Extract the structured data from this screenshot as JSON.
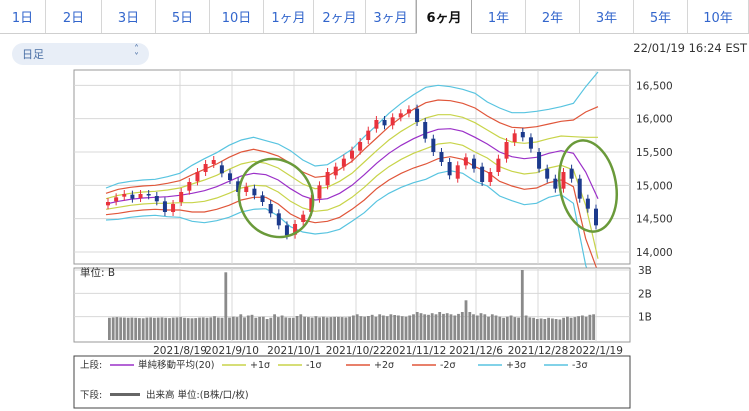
{
  "tabs": [
    {
      "label": "1日",
      "active": false
    },
    {
      "label": "2日",
      "active": false
    },
    {
      "label": "3日",
      "active": false
    },
    {
      "label": "5日",
      "active": false
    },
    {
      "label": "10日",
      "active": false
    },
    {
      "label": "1ヶ月",
      "active": false
    },
    {
      "label": "2ヶ月",
      "active": false
    },
    {
      "label": "3ヶ月",
      "active": false
    },
    {
      "label": "6ヶ月",
      "active": true
    },
    {
      "label": "1年",
      "active": false
    },
    {
      "label": "2年",
      "active": false
    },
    {
      "label": "3年",
      "active": false
    },
    {
      "label": "5年",
      "active": false
    },
    {
      "label": "10年",
      "active": false
    }
  ],
  "controls": {
    "interval_value": "日足"
  },
  "datetime": "22/01/19 16:24 EST",
  "colors": {
    "up": "#e8323c",
    "down": "#1c3a8c",
    "sma": "#9b30c8",
    "s1": "#c8d44a",
    "s2": "#e0563a",
    "s3": "#58c4e0",
    "volume": "#888888",
    "highlight": "#6a9a3a"
  },
  "chart_data": [
    {
      "type": "candlestick",
      "y_ticks": [
        "16,500",
        "16,000",
        "15,500",
        "15,000",
        "14,500",
        "14,000"
      ],
      "ylim": [
        13850,
        16700
      ],
      "x_ticks": [
        "2021/8/19",
        "2021/9/10",
        "2021/10/1",
        "2021/10/22",
        "2021/11/12",
        "2021/12/6",
        "2021/12/28",
        "2022/1/19"
      ],
      "series": [
        {
          "name": "単純移動平均(20)",
          "type": "line",
          "values": [
            14720,
            14760,
            14790,
            14810,
            14820,
            14830,
            14850,
            14880,
            14920,
            14980,
            15060,
            15140,
            15180,
            15160,
            15080,
            14950,
            14840,
            14780,
            14800,
            14880,
            15000,
            15160,
            15330,
            15480,
            15600,
            15700,
            15780,
            15840,
            15850,
            15810,
            15720,
            15620,
            15500,
            15430,
            15400,
            15420,
            15480,
            15520,
            15480,
            15200,
            14800
          ]
        },
        {
          "name": "+1σ",
          "type": "line",
          "values": [
            14800,
            14850,
            14880,
            14900,
            14910,
            14930,
            14960,
            15020,
            15080,
            15150,
            15240,
            15320,
            15360,
            15330,
            15260,
            15140,
            15020,
            14950,
            14970,
            15060,
            15180,
            15350,
            15520,
            15680,
            15810,
            15920,
            16010,
            16060,
            16060,
            16020,
            15940,
            15830,
            15720,
            15650,
            15630,
            15650,
            15700,
            15740,
            15730,
            15720,
            15720
          ]
        },
        {
          "name": "-1σ",
          "type": "line",
          "values": [
            14640,
            14670,
            14700,
            14720,
            14730,
            14730,
            14740,
            14740,
            14760,
            14810,
            14880,
            14960,
            15000,
            14990,
            14900,
            14760,
            14660,
            14610,
            14630,
            14700,
            14820,
            14970,
            15140,
            15280,
            15390,
            15480,
            15550,
            15620,
            15640,
            15600,
            15500,
            15410,
            15280,
            15210,
            15170,
            15190,
            15260,
            15300,
            15230,
            14700,
            13900
          ]
        },
        {
          "name": "+2σ",
          "type": "line",
          "values": [
            14880,
            14940,
            14970,
            14990,
            15000,
            15030,
            15070,
            15160,
            15240,
            15320,
            15420,
            15500,
            15540,
            15500,
            15440,
            15330,
            15200,
            15120,
            15140,
            15240,
            15360,
            15540,
            15710,
            15880,
            16020,
            16140,
            16240,
            16280,
            16270,
            16230,
            16160,
            16040,
            15940,
            15870,
            15860,
            15880,
            15920,
            15960,
            15980,
            16100,
            16180
          ]
        },
        {
          "name": "-2σ",
          "type": "line",
          "values": [
            14560,
            14580,
            14610,
            14630,
            14640,
            14630,
            14630,
            14600,
            14600,
            14640,
            14700,
            14780,
            14820,
            14820,
            14720,
            14570,
            14480,
            14440,
            14460,
            14520,
            14640,
            14780,
            14950,
            15080,
            15180,
            15260,
            15320,
            15400,
            15430,
            15390,
            15280,
            15200,
            15060,
            14990,
            14940,
            14960,
            15040,
            15080,
            14980,
            14200,
            13700
          ]
        },
        {
          "name": "+3σ",
          "type": "line",
          "values": [
            14960,
            15030,
            15060,
            15080,
            15090,
            15130,
            15180,
            15300,
            15400,
            15490,
            15600,
            15680,
            15720,
            15670,
            15620,
            15520,
            15380,
            15290,
            15310,
            15420,
            15540,
            15730,
            15900,
            16080,
            16230,
            16360,
            16470,
            16500,
            16480,
            16440,
            16380,
            16250,
            16160,
            16090,
            16090,
            16110,
            16140,
            16180,
            16230,
            16480,
            16700
          ]
        },
        {
          "name": "-3σ",
          "type": "line",
          "values": [
            14480,
            14490,
            14520,
            14540,
            14550,
            14530,
            14520,
            14460,
            14440,
            14470,
            14520,
            14600,
            14640,
            14650,
            14540,
            14380,
            14300,
            14270,
            14290,
            14340,
            14460,
            14590,
            14760,
            14880,
            14970,
            15040,
            15090,
            15180,
            15220,
            15180,
            15060,
            14990,
            14840,
            14770,
            14710,
            14730,
            14820,
            14860,
            14730,
            13800,
            13300
          ]
        }
      ],
      "candles": [
        [
          14700,
          14750
        ],
        [
          14760,
          14820
        ],
        [
          14830,
          14870
        ],
        [
          14860,
          14800
        ],
        [
          14810,
          14870
        ],
        [
          14870,
          14850
        ],
        [
          14840,
          14760
        ],
        [
          14760,
          14600
        ],
        [
          14600,
          14720
        ],
        [
          14750,
          14900
        ],
        [
          14920,
          15050
        ],
        [
          15060,
          15200
        ],
        [
          15200,
          15320
        ],
        [
          15320,
          15380
        ],
        [
          15300,
          15180
        ],
        [
          15180,
          15080
        ],
        [
          15060,
          14900
        ],
        [
          14900,
          14980
        ],
        [
          14950,
          14850
        ],
        [
          14850,
          14750
        ],
        [
          14720,
          14580
        ],
        [
          14580,
          14400
        ],
        [
          14400,
          14250
        ],
        [
          14260,
          14420
        ],
        [
          14450,
          14560
        ],
        [
          14600,
          14800
        ],
        [
          14800,
          15000
        ],
        [
          15000,
          15200
        ],
        [
          15150,
          15280
        ],
        [
          15280,
          15400
        ],
        [
          15400,
          15520
        ],
        [
          15520,
          15650
        ],
        [
          15680,
          15820
        ],
        [
          15850,
          15980
        ],
        [
          15980,
          15900
        ],
        [
          15900,
          16020
        ],
        [
          16020,
          16080
        ],
        [
          16080,
          16140
        ],
        [
          16150,
          15950
        ],
        [
          15950,
          15700
        ],
        [
          15700,
          15500
        ],
        [
          15500,
          15350
        ],
        [
          15350,
          15150
        ],
        [
          15100,
          15300
        ],
        [
          15300,
          15420
        ],
        [
          15400,
          15250
        ],
        [
          15280,
          15050
        ],
        [
          15050,
          15200
        ],
        [
          15200,
          15400
        ],
        [
          15400,
          15650
        ],
        [
          15650,
          15780
        ],
        [
          15800,
          15720
        ],
        [
          15720,
          15550
        ],
        [
          15500,
          15250
        ],
        [
          15250,
          15100
        ],
        [
          15100,
          14950
        ],
        [
          14950,
          15200
        ],
        [
          15250,
          15100
        ],
        [
          15100,
          14800
        ],
        [
          14800,
          14650
        ],
        [
          14650,
          14400
        ]
      ],
      "highlights": [
        "ellipse-left",
        "ellipse-right"
      ]
    },
    {
      "type": "bar",
      "unit": "単位: B",
      "y_ticks": [
        "3B",
        "2B",
        "1B"
      ],
      "ylim": [
        0,
        3
      ],
      "values": [
        0.95,
        0.97,
        0.98,
        0.97,
        0.96,
        0.95,
        0.96,
        0.95,
        0.94,
        0.93,
        0.96,
        0.97,
        0.95,
        0.96,
        0.97,
        0.95,
        0.94,
        0.96,
        0.97,
        0.98,
        0.95,
        0.94,
        0.93,
        0.94,
        0.96,
        0.97,
        0.95,
        0.97,
        1.02,
        0.96,
        0.95,
        2.9,
        0.96,
        1.0,
        0.98,
        1.1,
        0.97,
        1.05,
        1.08,
        0.95,
        0.99,
        1.0,
        0.9,
        0.95,
        1.1,
        0.98,
        1.05,
        0.97,
        0.95,
        0.95,
        1.03,
        1.1,
        1.0,
        0.98,
        0.96,
        1.02,
        0.97,
        1.0,
        0.97,
        0.98,
        0.99,
        0.99,
        0.98,
        0.97,
        1.0,
        1.05,
        1.1,
        1.02,
        1.0,
        1.03,
        1.08,
        1.0,
        1.1,
        1.05,
        1.02,
        1.1,
        1.07,
        1.05,
        1.02,
        1.0,
        1.05,
        1.1,
        1.2,
        1.15,
        1.1,
        1.08,
        1.15,
        1.1,
        1.2,
        1.12,
        1.15,
        1.1,
        1.05,
        1.12,
        1.2,
        1.7,
        1.2,
        1.1,
        1.05,
        1.15,
        1.1,
        1.0,
        1.1,
        1.05,
        1.0,
        0.95,
        1.0,
        1.05,
        0.98,
        0.96,
        3.0,
        1.05,
        0.97,
        0.95,
        0.9,
        0.92,
        0.9,
        0.95,
        0.92,
        0.9,
        0.88,
        0.95,
        1.0,
        0.95,
        0.98,
        1.02,
        1.05,
        1.0,
        1.08,
        1.1
      ]
    }
  ],
  "legend": {
    "upper_label": "上段:",
    "upper_items": [
      "単純移動平均(20)",
      "+1σ",
      "-1σ",
      "+2σ",
      "-2σ",
      "+3σ",
      "-3σ"
    ],
    "lower_label": "下段:",
    "lower_item": "出来高 単位:(B株/口/枚)"
  }
}
